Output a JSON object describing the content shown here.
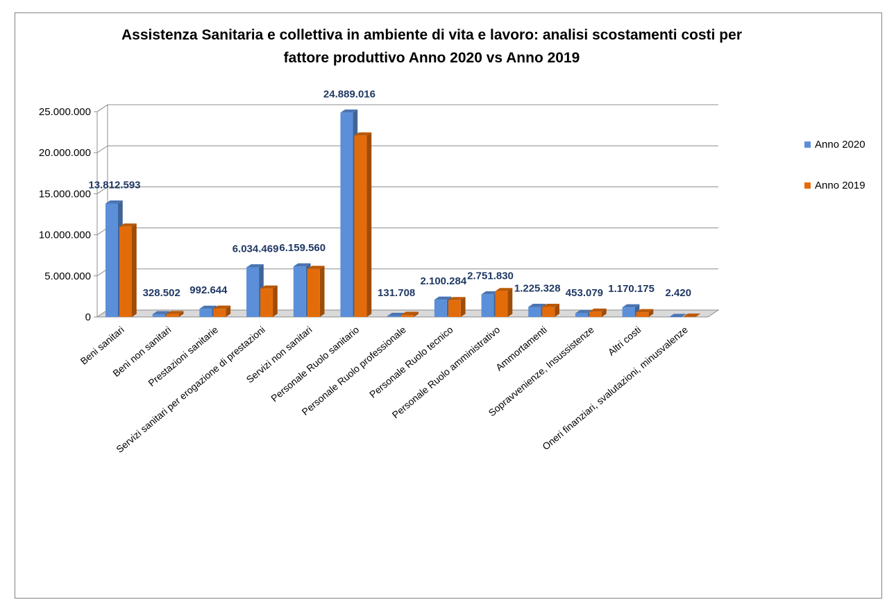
{
  "chart_data": {
    "type": "bar",
    "title_lines": [
      "Assistenza Sanitaria e collettiva in ambiente di vita e lavoro: analisi scostamenti costi per",
      "fattore produttivo Anno 2020 vs Anno 2019"
    ],
    "categories": [
      "Beni sanitari",
      "Beni non sanitari",
      "Prestazioni sanitarie",
      "Servizi sanitari per erogazione di prestazioni",
      "Servizi non sanitari",
      "Personale Ruolo sanitario",
      "Personale Ruolo professionale",
      "Personale Ruolo tecnico",
      "Personale Ruolo amministrativo",
      "Ammortamenti",
      "Sopravvenienze, Insussistenze",
      "Altri costi",
      "Oneri finanziari, svalutazioni, minusvalenze"
    ],
    "series": [
      {
        "name": "Anno 2020",
        "color": "#5B8FD9",
        "values": [
          13812593,
          328502,
          992644,
          6034469,
          6159560,
          24889016,
          131708,
          2100284,
          2751830,
          1225328,
          453079,
          1170175,
          2420
        ],
        "labels": [
          "13.812.593",
          "328.502",
          "992.644",
          "6.034.469",
          "6.159.560",
          "24.889.016",
          "131.708",
          "2.100.284",
          "2.751.830",
          "1.225.328",
          "453.079",
          "1.170.175",
          "2.420"
        ]
      },
      {
        "name": "Anno 2019",
        "color": "#E36C0A",
        "values": [
          11000000,
          350000,
          1000000,
          3450000,
          5850000,
          22100000,
          250000,
          2050000,
          3150000,
          1220000,
          640000,
          580000,
          30000
        ]
      }
    ],
    "y_ticks": [
      "0",
      "5.000.000",
      "10.000.000",
      "15.000.000",
      "20.000.000",
      "25.000.000"
    ],
    "ylim": [
      0,
      25000000
    ],
    "grid": true,
    "legend_position": "right"
  }
}
